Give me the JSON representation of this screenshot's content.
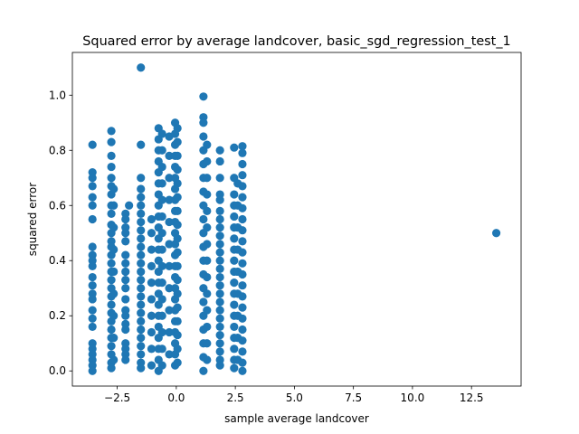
{
  "chart_data": {
    "type": "scatter",
    "title": "Squared error by average landcover, basic_sgd_regression_test_1",
    "xlabel": "sample average landcover",
    "ylabel": "squared error",
    "xlim": [
      -4.4,
      14.6
    ],
    "ylim": [
      -0.055,
      1.155
    ],
    "xticks": [
      -2.5,
      0.0,
      2.5,
      5.0,
      7.5,
      10.0,
      12.5
    ],
    "xtick_labels": [
      "−2.5",
      "0.0",
      "2.5",
      "5.0",
      "7.5",
      "10.0",
      "12.5"
    ],
    "yticks": [
      0.0,
      0.2,
      0.4,
      0.6,
      0.8,
      1.0
    ],
    "ytick_labels": [
      "0.0",
      "0.2",
      "0.4",
      "0.6",
      "0.8",
      "1.0"
    ],
    "grid": false,
    "marker_color": "#1f77b4",
    "series": [
      {
        "points": [
          [
            -3.55,
            0.82
          ],
          [
            -3.55,
            0.72
          ],
          [
            -3.55,
            0.7
          ],
          [
            -3.55,
            0.67
          ],
          [
            -3.55,
            0.63
          ],
          [
            -3.55,
            0.6
          ],
          [
            -3.55,
            0.55
          ],
          [
            -3.55,
            0.45
          ],
          [
            -3.55,
            0.42
          ],
          [
            -3.55,
            0.4
          ],
          [
            -3.55,
            0.38
          ],
          [
            -3.55,
            0.34
          ],
          [
            -3.55,
            0.31
          ],
          [
            -3.55,
            0.28
          ],
          [
            -3.55,
            0.26
          ],
          [
            -3.55,
            0.22
          ],
          [
            -3.55,
            0.19
          ],
          [
            -3.55,
            0.16
          ],
          [
            -3.55,
            0.1
          ],
          [
            -3.55,
            0.08
          ],
          [
            -3.55,
            0.06
          ],
          [
            -3.55,
            0.04
          ],
          [
            -3.55,
            0.02
          ],
          [
            -3.55,
            0.0
          ],
          [
            -2.75,
            0.87
          ],
          [
            -2.75,
            0.83
          ],
          [
            -2.75,
            0.78
          ],
          [
            -2.75,
            0.74
          ],
          [
            -2.75,
            0.7
          ],
          [
            -2.75,
            0.67
          ],
          [
            -2.75,
            0.64
          ],
          [
            -2.75,
            0.6
          ],
          [
            -2.75,
            0.57
          ],
          [
            -2.75,
            0.53
          ],
          [
            -2.75,
            0.5
          ],
          [
            -2.75,
            0.47
          ],
          [
            -2.75,
            0.45
          ],
          [
            -2.75,
            0.42
          ],
          [
            -2.75,
            0.39
          ],
          [
            -2.75,
            0.36
          ],
          [
            -2.75,
            0.33
          ],
          [
            -2.75,
            0.3
          ],
          [
            -2.75,
            0.27
          ],
          [
            -2.75,
            0.24
          ],
          [
            -2.75,
            0.21
          ],
          [
            -2.75,
            0.18
          ],
          [
            -2.75,
            0.15
          ],
          [
            -2.75,
            0.12
          ],
          [
            -2.75,
            0.09
          ],
          [
            -2.75,
            0.06
          ],
          [
            -2.75,
            0.03
          ],
          [
            -2.75,
            0.01
          ],
          [
            -2.65,
            0.66
          ],
          [
            -2.65,
            0.6
          ],
          [
            -2.65,
            0.52
          ],
          [
            -2.65,
            0.44
          ],
          [
            -2.65,
            0.36
          ],
          [
            -2.65,
            0.28
          ],
          [
            -2.65,
            0.2
          ],
          [
            -2.65,
            0.12
          ],
          [
            -2.65,
            0.04
          ],
          [
            -2.15,
            0.57
          ],
          [
            -2.15,
            0.55
          ],
          [
            -2.15,
            0.52
          ],
          [
            -2.15,
            0.5
          ],
          [
            -2.15,
            0.47
          ],
          [
            -2.15,
            0.42
          ],
          [
            -2.15,
            0.39
          ],
          [
            -2.15,
            0.36
          ],
          [
            -2.15,
            0.33
          ],
          [
            -2.15,
            0.3
          ],
          [
            -2.15,
            0.26
          ],
          [
            -2.15,
            0.22
          ],
          [
            -2.15,
            0.2
          ],
          [
            -2.15,
            0.17
          ],
          [
            -2.15,
            0.15
          ],
          [
            -2.15,
            0.1
          ],
          [
            -2.15,
            0.08
          ],
          [
            -2.15,
            0.06
          ],
          [
            -2.15,
            0.04
          ],
          [
            -2.0,
            0.6
          ],
          [
            -1.5,
            1.1
          ],
          [
            -1.5,
            0.82
          ],
          [
            -1.5,
            0.7
          ],
          [
            -1.5,
            0.66
          ],
          [
            -1.5,
            0.63
          ],
          [
            -1.5,
            0.6
          ],
          [
            -1.5,
            0.57
          ],
          [
            -1.5,
            0.54
          ],
          [
            -1.5,
            0.51
          ],
          [
            -1.5,
            0.48
          ],
          [
            -1.5,
            0.45
          ],
          [
            -1.5,
            0.42
          ],
          [
            -1.5,
            0.39
          ],
          [
            -1.5,
            0.36
          ],
          [
            -1.5,
            0.33
          ],
          [
            -1.5,
            0.3
          ],
          [
            -1.5,
            0.27
          ],
          [
            -1.5,
            0.24
          ],
          [
            -1.5,
            0.21
          ],
          [
            -1.5,
            0.18
          ],
          [
            -1.5,
            0.15
          ],
          [
            -1.5,
            0.12
          ],
          [
            -1.5,
            0.09
          ],
          [
            -1.5,
            0.06
          ],
          [
            -1.5,
            0.03
          ],
          [
            -1.5,
            0.01
          ],
          [
            -1.05,
            0.55
          ],
          [
            -1.05,
            0.5
          ],
          [
            -1.05,
            0.44
          ],
          [
            -1.05,
            0.38
          ],
          [
            -1.05,
            0.32
          ],
          [
            -1.05,
            0.26
          ],
          [
            -1.05,
            0.2
          ],
          [
            -1.05,
            0.14
          ],
          [
            -1.05,
            0.08
          ],
          [
            -1.05,
            0.02
          ],
          [
            -0.75,
            0.88
          ],
          [
            -0.75,
            0.84
          ],
          [
            -0.75,
            0.8
          ],
          [
            -0.75,
            0.76
          ],
          [
            -0.75,
            0.72
          ],
          [
            -0.75,
            0.68
          ],
          [
            -0.75,
            0.64
          ],
          [
            -0.75,
            0.6
          ],
          [
            -0.75,
            0.56
          ],
          [
            -0.75,
            0.52
          ],
          [
            -0.75,
            0.48
          ],
          [
            -0.75,
            0.44
          ],
          [
            -0.75,
            0.4
          ],
          [
            -0.75,
            0.36
          ],
          [
            -0.75,
            0.32
          ],
          [
            -0.75,
            0.28
          ],
          [
            -0.75,
            0.24
          ],
          [
            -0.75,
            0.2
          ],
          [
            -0.75,
            0.16
          ],
          [
            -0.75,
            0.12
          ],
          [
            -0.75,
            0.08
          ],
          [
            -0.75,
            0.04
          ],
          [
            -0.75,
            0.0
          ],
          [
            -0.6,
            0.86
          ],
          [
            -0.6,
            0.8
          ],
          [
            -0.6,
            0.74
          ],
          [
            -0.6,
            0.68
          ],
          [
            -0.6,
            0.62
          ],
          [
            -0.6,
            0.56
          ],
          [
            -0.6,
            0.5
          ],
          [
            -0.6,
            0.44
          ],
          [
            -0.6,
            0.38
          ],
          [
            -0.6,
            0.32
          ],
          [
            -0.6,
            0.26
          ],
          [
            -0.6,
            0.2
          ],
          [
            -0.6,
            0.14
          ],
          [
            -0.6,
            0.08
          ],
          [
            -0.6,
            0.02
          ],
          [
            -0.3,
            0.85
          ],
          [
            -0.3,
            0.78
          ],
          [
            -0.3,
            0.7
          ],
          [
            -0.3,
            0.62
          ],
          [
            -0.3,
            0.54
          ],
          [
            -0.3,
            0.46
          ],
          [
            -0.3,
            0.38
          ],
          [
            -0.3,
            0.3
          ],
          [
            -0.3,
            0.22
          ],
          [
            -0.3,
            0.14
          ],
          [
            -0.3,
            0.06
          ],
          [
            -0.05,
            0.9
          ],
          [
            -0.05,
            0.86
          ],
          [
            -0.05,
            0.82
          ],
          [
            -0.05,
            0.78
          ],
          [
            -0.05,
            0.74
          ],
          [
            -0.05,
            0.7
          ],
          [
            -0.05,
            0.66
          ],
          [
            -0.05,
            0.62
          ],
          [
            -0.05,
            0.58
          ],
          [
            -0.05,
            0.54
          ],
          [
            -0.05,
            0.5
          ],
          [
            -0.05,
            0.46
          ],
          [
            -0.05,
            0.42
          ],
          [
            -0.05,
            0.38
          ],
          [
            -0.05,
            0.34
          ],
          [
            -0.05,
            0.3
          ],
          [
            -0.05,
            0.26
          ],
          [
            -0.05,
            0.22
          ],
          [
            -0.05,
            0.18
          ],
          [
            -0.05,
            0.14
          ],
          [
            -0.05,
            0.1
          ],
          [
            -0.05,
            0.06
          ],
          [
            -0.05,
            0.02
          ],
          [
            0.05,
            0.88
          ],
          [
            0.05,
            0.83
          ],
          [
            0.05,
            0.78
          ],
          [
            0.05,
            0.73
          ],
          [
            0.05,
            0.68
          ],
          [
            0.05,
            0.63
          ],
          [
            0.05,
            0.58
          ],
          [
            0.05,
            0.53
          ],
          [
            0.05,
            0.48
          ],
          [
            0.05,
            0.43
          ],
          [
            0.05,
            0.38
          ],
          [
            0.05,
            0.33
          ],
          [
            0.05,
            0.28
          ],
          [
            0.05,
            0.23
          ],
          [
            0.05,
            0.18
          ],
          [
            0.05,
            0.13
          ],
          [
            0.05,
            0.08
          ],
          [
            0.05,
            0.03
          ],
          [
            1.15,
            0.995
          ],
          [
            1.15,
            0.92
          ],
          [
            1.15,
            0.9
          ],
          [
            1.15,
            0.85
          ],
          [
            1.15,
            0.8
          ],
          [
            1.15,
            0.75
          ],
          [
            1.15,
            0.7
          ],
          [
            1.15,
            0.65
          ],
          [
            1.15,
            0.6
          ],
          [
            1.15,
            0.55
          ],
          [
            1.15,
            0.5
          ],
          [
            1.15,
            0.45
          ],
          [
            1.15,
            0.4
          ],
          [
            1.15,
            0.35
          ],
          [
            1.15,
            0.3
          ],
          [
            1.15,
            0.25
          ],
          [
            1.15,
            0.2
          ],
          [
            1.15,
            0.15
          ],
          [
            1.15,
            0.1
          ],
          [
            1.15,
            0.05
          ],
          [
            1.15,
            0.0
          ],
          [
            1.3,
            0.82
          ],
          [
            1.3,
            0.76
          ],
          [
            1.3,
            0.7
          ],
          [
            1.3,
            0.64
          ],
          [
            1.3,
            0.58
          ],
          [
            1.3,
            0.52
          ],
          [
            1.3,
            0.46
          ],
          [
            1.3,
            0.4
          ],
          [
            1.3,
            0.34
          ],
          [
            1.3,
            0.28
          ],
          [
            1.3,
            0.22
          ],
          [
            1.3,
            0.16
          ],
          [
            1.3,
            0.1
          ],
          [
            1.3,
            0.04
          ],
          [
            1.85,
            0.8
          ],
          [
            1.85,
            0.76
          ],
          [
            1.85,
            0.7
          ],
          [
            1.85,
            0.64
          ],
          [
            1.85,
            0.62
          ],
          [
            1.85,
            0.58
          ],
          [
            1.85,
            0.55
          ],
          [
            1.85,
            0.52
          ],
          [
            1.85,
            0.49
          ],
          [
            1.85,
            0.46
          ],
          [
            1.85,
            0.43
          ],
          [
            1.85,
            0.4
          ],
          [
            1.85,
            0.37
          ],
          [
            1.85,
            0.34
          ],
          [
            1.85,
            0.31
          ],
          [
            1.85,
            0.28
          ],
          [
            1.85,
            0.25
          ],
          [
            1.85,
            0.22
          ],
          [
            1.85,
            0.19
          ],
          [
            1.85,
            0.16
          ],
          [
            1.85,
            0.13
          ],
          [
            1.85,
            0.1
          ],
          [
            1.85,
            0.07
          ],
          [
            1.85,
            0.04
          ],
          [
            1.85,
            0.02
          ],
          [
            2.45,
            0.81
          ],
          [
            2.45,
            0.7
          ],
          [
            2.45,
            0.64
          ],
          [
            2.45,
            0.6
          ],
          [
            2.45,
            0.56
          ],
          [
            2.45,
            0.52
          ],
          [
            2.45,
            0.48
          ],
          [
            2.45,
            0.44
          ],
          [
            2.45,
            0.4
          ],
          [
            2.45,
            0.36
          ],
          [
            2.45,
            0.32
          ],
          [
            2.45,
            0.28
          ],
          [
            2.45,
            0.24
          ],
          [
            2.45,
            0.2
          ],
          [
            2.45,
            0.16
          ],
          [
            2.45,
            0.12
          ],
          [
            2.45,
            0.08
          ],
          [
            2.45,
            0.04
          ],
          [
            2.45,
            0.01
          ],
          [
            2.6,
            0.68
          ],
          [
            2.6,
            0.6
          ],
          [
            2.6,
            0.52
          ],
          [
            2.6,
            0.44
          ],
          [
            2.6,
            0.36
          ],
          [
            2.6,
            0.28
          ],
          [
            2.6,
            0.2
          ],
          [
            2.6,
            0.12
          ],
          [
            2.6,
            0.04
          ],
          [
            2.8,
            0.815
          ],
          [
            2.8,
            0.79
          ],
          [
            2.8,
            0.75
          ],
          [
            2.8,
            0.71
          ],
          [
            2.8,
            0.67
          ],
          [
            2.8,
            0.63
          ],
          [
            2.8,
            0.59
          ],
          [
            2.8,
            0.55
          ],
          [
            2.8,
            0.51
          ],
          [
            2.8,
            0.47
          ],
          [
            2.8,
            0.43
          ],
          [
            2.8,
            0.39
          ],
          [
            2.8,
            0.35
          ],
          [
            2.8,
            0.31
          ],
          [
            2.8,
            0.27
          ],
          [
            2.8,
            0.23
          ],
          [
            2.8,
            0.19
          ],
          [
            2.8,
            0.15
          ],
          [
            2.8,
            0.11
          ],
          [
            2.8,
            0.07
          ],
          [
            2.8,
            0.03
          ],
          [
            2.8,
            0.0
          ],
          [
            13.55,
            0.5
          ]
        ]
      }
    ]
  }
}
